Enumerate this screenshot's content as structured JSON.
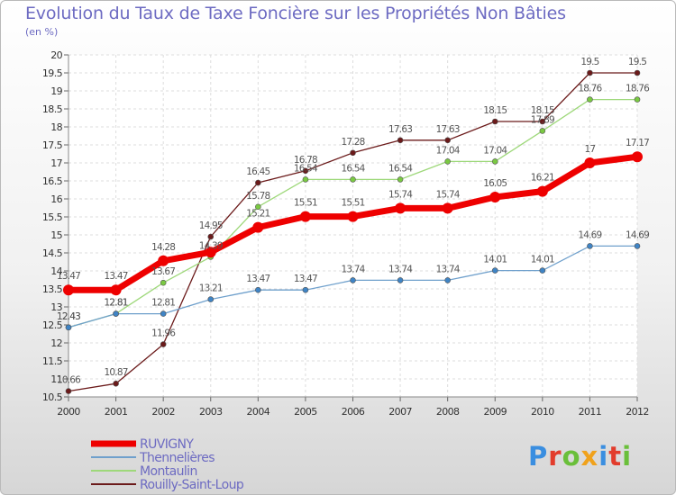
{
  "title": "Evolution du Taux de Taxe Foncière sur les Propriétés Non Bâties",
  "unit": "(en %)",
  "brand": {
    "text": "Proxiti",
    "colors": [
      "#3a8ee0",
      "#e23c2c",
      "#6abf3a",
      "#f0a21c",
      "#3a8ee0",
      "#e23c2c",
      "#6abf3a"
    ]
  },
  "chart_data": {
    "type": "line",
    "x": [
      "2000",
      "2001",
      "2002",
      "2003",
      "2004",
      "2005",
      "2006",
      "2007",
      "2008",
      "2009",
      "2010",
      "2011",
      "2012"
    ],
    "ylim": [
      10.5,
      20
    ],
    "yticks": [
      "10.5",
      "11",
      "11.5",
      "12",
      "12.5",
      "13",
      "13.5",
      "14",
      "14.5",
      "15",
      "15.5",
      "16",
      "16.5",
      "17",
      "17.5",
      "18",
      "18.5",
      "19",
      "19.5",
      "20"
    ],
    "grid": true,
    "legend_position": "bottom-left",
    "series": [
      {
        "name": "Rouilly-Saint-Loup",
        "color": "#6b1a1a",
        "width": 1.3,
        "marker": "#6b1a1a",
        "values": [
          10.66,
          10.87,
          11.96,
          14.95,
          16.45,
          16.78,
          17.28,
          17.63,
          17.63,
          18.15,
          18.15,
          19.5,
          19.5
        ],
        "labels": [
          "10.66",
          "10.87",
          "11.96",
          "14.95",
          "16.45",
          "16.78",
          "17.28",
          "17.63",
          "17.63",
          "18.15",
          "18.15",
          "19.5",
          "19.5"
        ]
      },
      {
        "name": "Montaulin",
        "color": "#9ed87a",
        "width": 1.3,
        "marker": "#7ac943",
        "values": [
          12.43,
          12.81,
          13.67,
          14.39,
          15.78,
          16.54,
          16.54,
          16.54,
          17.04,
          17.04,
          17.89,
          18.76,
          18.76
        ],
        "labels": [
          "12.43",
          "12.81",
          "13.67",
          "14.39",
          "15.78",
          "16.54",
          "16.54",
          "16.54",
          "17.04",
          "17.04",
          "17.89",
          "18.76",
          "18.76"
        ]
      },
      {
        "name": "Thennelières",
        "color": "#6fa0cc",
        "width": 1.3,
        "marker": "#3f84c5",
        "values": [
          12.43,
          12.81,
          12.81,
          13.21,
          13.47,
          13.47,
          13.74,
          13.74,
          13.74,
          14.01,
          14.01,
          14.69,
          14.69
        ],
        "labels": [
          "12.43",
          "12.81",
          "12.81",
          "13.21",
          "13.47",
          "13.47",
          "13.74",
          "13.74",
          "13.74",
          "14.01",
          "14.01",
          "14.69",
          "14.69"
        ]
      },
      {
        "name": "RUVIGNY",
        "color": "#ee0000",
        "width": 7,
        "marker": "#ee0000",
        "values": [
          13.47,
          13.47,
          14.28,
          14.52,
          15.21,
          15.51,
          15.51,
          15.74,
          15.74,
          16.05,
          16.21,
          17.0,
          17.17
        ],
        "labels": [
          "13.47",
          "13.47",
          "14.28",
          "",
          "15.21",
          "15.51",
          "15.51",
          "15.74",
          "15.74",
          "16.05",
          "16.21",
          "17",
          "17.17"
        ]
      }
    ],
    "legend": [
      {
        "name": "RUVIGNY",
        "color": "#ee0000",
        "width": 7
      },
      {
        "name": "Thennelières",
        "color": "#6fa0cc",
        "width": 2
      },
      {
        "name": "Montaulin",
        "color": "#9ed87a",
        "width": 2
      },
      {
        "name": "Rouilly-Saint-Loup",
        "color": "#6b1a1a",
        "width": 2
      }
    ]
  }
}
